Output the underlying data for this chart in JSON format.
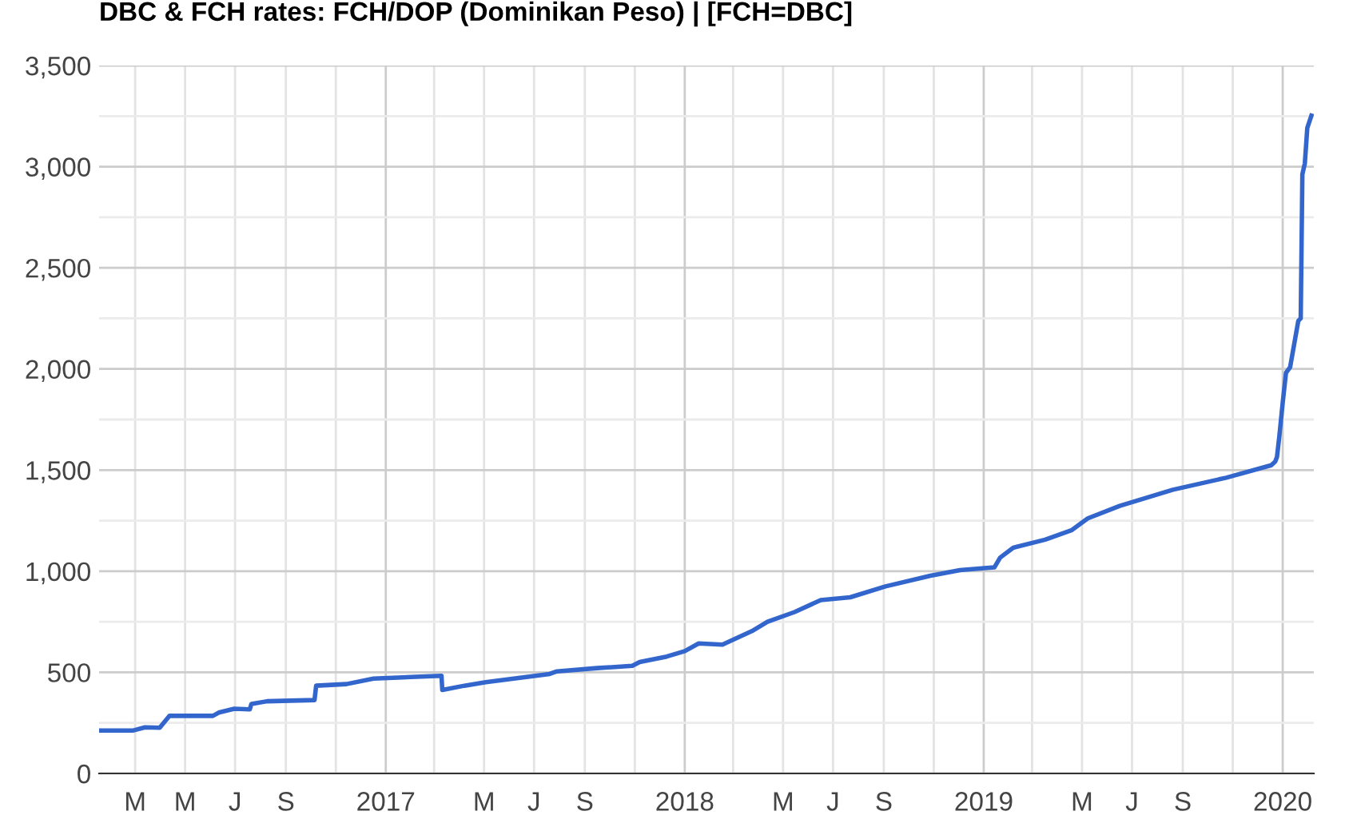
{
  "chart_data": {
    "type": "line",
    "title": "DBC & FCH rates: FCH/DOP (Dominikan Peso) | [FCH=DBC]",
    "x": [
      "2016-01-17",
      "2016-02-27",
      "2016-03-13",
      "2016-03-31",
      "2016-04-12",
      "2016-06-04",
      "2016-06-11",
      "2016-06-30",
      "2016-07-19",
      "2016-07-21",
      "2016-08-09",
      "2016-10-06",
      "2016-10-08",
      "2016-11-14",
      "2016-12-17",
      "2017-03-10",
      "2017-03-11",
      "2017-04-07",
      "2017-05-03",
      "2017-07-20",
      "2017-07-29",
      "2017-09-16",
      "2017-10-29",
      "2017-11-07",
      "2017-12-10",
      "2018-01-01",
      "2018-01-18",
      "2018-02-16",
      "2018-03-24",
      "2018-04-12",
      "2018-05-15",
      "2018-06-16",
      "2018-07-22",
      "2018-09-03",
      "2018-10-28",
      "2018-12-03",
      "2019-01-14",
      "2019-01-21",
      "2019-02-06",
      "2019-03-17",
      "2019-04-18",
      "2019-05-08",
      "2019-06-16",
      "2019-08-20",
      "2019-10-24",
      "2019-12-18",
      "2019-12-23",
      "2019-12-25",
      "2019-12-28",
      "2020-01-01",
      "2020-01-05",
      "2020-01-10",
      "2020-01-20",
      "2020-01-23",
      "2020-01-25",
      "2020-01-28",
      "2020-01-31",
      "2020-02-05"
    ],
    "series": [
      {
        "color": "#3366cc",
        "values": [
          212,
          212,
          228,
          226,
          285,
          285,
          301,
          320,
          317,
          344,
          357,
          363,
          434,
          442,
          469,
          483,
          413,
          434,
          451,
          492,
          505,
          521,
          532,
          551,
          578,
          605,
          643,
          637,
          704,
          750,
          798,
          857,
          871,
          925,
          978,
          1005,
          1019,
          1067,
          1116,
          1156,
          1202,
          1261,
          1323,
          1403,
          1462,
          1524,
          1543,
          1565,
          1672,
          1833,
          1981,
          2008,
          2237,
          2250,
          2962,
          3016,
          3191,
          3252
        ]
      }
    ],
    "xlim": [
      "2016-01-17",
      "2020-02-08"
    ],
    "xticks": [
      {
        "value": "2016-03-01",
        "label": "M"
      },
      {
        "value": "2016-05-01",
        "label": "M"
      },
      {
        "value": "2016-07-01",
        "label": "J"
      },
      {
        "value": "2016-09-01",
        "label": "S"
      },
      {
        "value": "2016-11-01",
        "label": null
      },
      {
        "value": "2017-01-01",
        "label": "2017"
      },
      {
        "value": "2017-03-01",
        "label": null
      },
      {
        "value": "2017-05-01",
        "label": "M"
      },
      {
        "value": "2017-07-01",
        "label": "J"
      },
      {
        "value": "2017-09-01",
        "label": "S"
      },
      {
        "value": "2017-11-01",
        "label": null
      },
      {
        "value": "2018-01-01",
        "label": "2018"
      },
      {
        "value": "2018-03-01",
        "label": null
      },
      {
        "value": "2018-05-01",
        "label": "M"
      },
      {
        "value": "2018-07-01",
        "label": "J"
      },
      {
        "value": "2018-09-01",
        "label": "S"
      },
      {
        "value": "2018-11-01",
        "label": null
      },
      {
        "value": "2019-01-01",
        "label": "2019"
      },
      {
        "value": "2019-03-01",
        "label": null
      },
      {
        "value": "2019-05-01",
        "label": "M"
      },
      {
        "value": "2019-07-01",
        "label": "J"
      },
      {
        "value": "2019-09-01",
        "label": "S"
      },
      {
        "value": "2019-11-01",
        "label": null
      },
      {
        "value": "2020-01-01",
        "label": "2020"
      }
    ],
    "ylim": [
      0,
      3500
    ],
    "yticks": [
      0,
      {
        "value": 250,
        "label": null
      },
      500,
      {
        "value": 750,
        "label": null
      },
      {
        "value": 1000,
        "label": "1,000"
      },
      {
        "value": 1250,
        "label": null
      },
      {
        "value": 1500,
        "label": "1,500"
      },
      {
        "value": 1750,
        "label": null
      },
      {
        "value": 2000,
        "label": "2,000"
      },
      {
        "value": 2250,
        "label": null
      },
      {
        "value": 2500,
        "label": "2,500"
      },
      {
        "value": 2750,
        "label": null
      },
      {
        "value": 3000,
        "label": "3,000"
      },
      {
        "value": 3250,
        "label": null
      },
      {
        "value": 3500,
        "label": "3,500"
      }
    ],
    "grid": true,
    "marker": "none",
    "line_style": "solid"
  }
}
